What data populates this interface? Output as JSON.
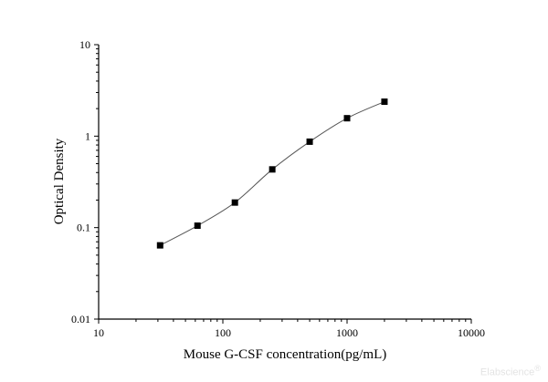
{
  "chart_data": {
    "type": "line",
    "title": "",
    "xlabel": "Mouse G-CSF concentration(pg/mL)",
    "ylabel": "Optical Density",
    "x_scale": "log",
    "y_scale": "log",
    "xlim": [
      10,
      10000
    ],
    "ylim": [
      0.01,
      10
    ],
    "x_ticks": [
      "10",
      "100",
      "1000",
      "10000"
    ],
    "y_ticks": [
      "0.01",
      "0.1",
      "1",
      "10"
    ],
    "grid": false,
    "marker": "square",
    "color": "#000000",
    "line_color": "#555555",
    "series": [
      {
        "x": [
          31.25,
          62.5,
          125,
          250,
          500,
          1000,
          2000
        ],
        "y": [
          0.064,
          0.105,
          0.188,
          0.433,
          0.87,
          1.57,
          2.38
        ]
      }
    ]
  },
  "watermark": "Elabscience"
}
